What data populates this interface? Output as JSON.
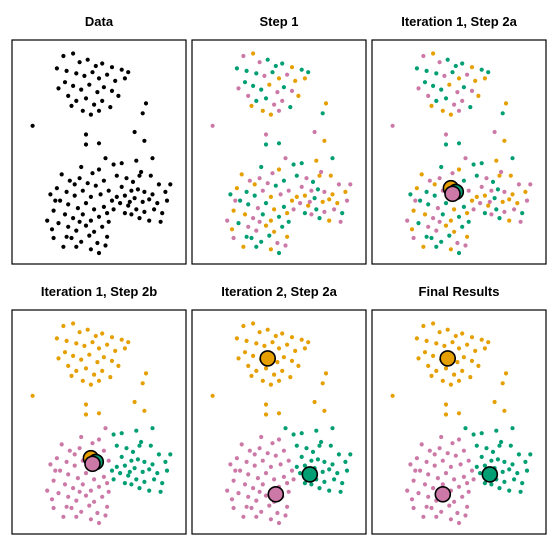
{
  "figure": {
    "colors": {
      "cluster1": "#E69F00",
      "cluster2": "#CC79A7",
      "cluster3": "#009E73",
      "unassigned": "#000000"
    },
    "panels": [
      {
        "title": "Data",
        "mode": "data",
        "show_centroids": false
      },
      {
        "title": "Step 1",
        "mode": "random",
        "show_centroids": false
      },
      {
        "title": "Iteration 1, Step 2a",
        "mode": "random",
        "show_centroids": true,
        "centroids": [
          {
            "cluster": 1,
            "x": 4.5,
            "y": 5.6
          },
          {
            "cluster": 3,
            "x": 4.8,
            "y": 5.3
          },
          {
            "cluster": 2,
            "x": 4.6,
            "y": 5.15
          }
        ]
      },
      {
        "title": "Iteration 1, Step 2b",
        "mode": "step2b",
        "show_centroids": true,
        "centroids": [
          {
            "cluster": 1,
            "x": 4.5,
            "y": 5.6
          },
          {
            "cluster": 3,
            "x": 4.8,
            "y": 5.3
          },
          {
            "cluster": 2,
            "x": 4.6,
            "y": 5.15
          }
        ]
      },
      {
        "title": "Iteration 2, Step 2a",
        "mode": "final",
        "show_centroids": true,
        "centroids": [
          {
            "cluster": 1,
            "x": 4.3,
            "y": 13.6
          },
          {
            "cluster": 3,
            "x": 6.9,
            "y": 4.3
          },
          {
            "cluster": 2,
            "x": 4.8,
            "y": 2.7
          }
        ]
      },
      {
        "title": "Final Results",
        "mode": "final",
        "show_centroids": true,
        "centroids": [
          {
            "cluster": 1,
            "x": 4.3,
            "y": 13.6
          },
          {
            "cluster": 3,
            "x": 6.9,
            "y": 4.3
          },
          {
            "cluster": 2,
            "x": 4.0,
            "y": 2.7
          }
        ]
      }
    ]
  },
  "chart_data": {
    "type": "scatter",
    "xlim": [
      0,
      10
    ],
    "ylim": [
      0,
      17
    ],
    "axes_visible": false,
    "points": [
      [
        2.8,
        16.2
      ],
      [
        3.4,
        16.4
      ],
      [
        3.8,
        15.7
      ],
      [
        4.3,
        15.9
      ],
      [
        4.8,
        15.4
      ],
      [
        5.2,
        15.6
      ],
      [
        5.8,
        15.3
      ],
      [
        6.4,
        15.1
      ],
      [
        2.4,
        15.2
      ],
      [
        3.0,
        15.0
      ],
      [
        3.6,
        14.8
      ],
      [
        4.1,
        14.6
      ],
      [
        4.6,
        14.9
      ],
      [
        5.0,
        14.4
      ],
      [
        5.5,
        14.7
      ],
      [
        6.0,
        14.2
      ],
      [
        6.6,
        14.4
      ],
      [
        2.9,
        14.1
      ],
      [
        3.4,
        13.8
      ],
      [
        3.9,
        13.5
      ],
      [
        4.4,
        13.9
      ],
      [
        4.9,
        13.3
      ],
      [
        5.3,
        13.7
      ],
      [
        5.8,
        13.4
      ],
      [
        6.2,
        13.0
      ],
      [
        3.1,
        13.0
      ],
      [
        3.6,
        12.6
      ],
      [
        4.2,
        12.8
      ],
      [
        4.7,
        12.3
      ],
      [
        5.2,
        12.6
      ],
      [
        5.7,
        12.1
      ],
      [
        3.3,
        12.2
      ],
      [
        4.0,
        11.8
      ],
      [
        4.5,
        11.5
      ],
      [
        5.0,
        11.8
      ],
      [
        2.5,
        13.6
      ],
      [
        6.8,
        14.9
      ],
      [
        0.9,
        10.6
      ],
      [
        7.7,
        11.6
      ],
      [
        7.9,
        12.4
      ],
      [
        7.2,
        10.1
      ],
      [
        4.2,
        9.1
      ],
      [
        5.0,
        9.2
      ],
      [
        7.8,
        9.4
      ],
      [
        5.4,
        8.0
      ],
      [
        5.9,
        7.5
      ],
      [
        6.4,
        7.6
      ],
      [
        7.3,
        7.8
      ],
      [
        7.6,
        6.9
      ],
      [
        5.0,
        7.1
      ],
      [
        6.1,
        6.6
      ],
      [
        6.7,
        6.4
      ],
      [
        7.1,
        6.1
      ],
      [
        8.2,
        6.6
      ],
      [
        8.7,
        5.9
      ],
      [
        6.4,
        5.7
      ],
      [
        7.0,
        5.4
      ],
      [
        7.4,
        5.5
      ],
      [
        7.8,
        5.3
      ],
      [
        8.3,
        5.1
      ],
      [
        9.1,
        5.3
      ],
      [
        6.6,
        5.0
      ],
      [
        7.2,
        4.8
      ],
      [
        7.7,
        4.5
      ],
      [
        8.1,
        4.7
      ],
      [
        8.6,
        4.4
      ],
      [
        9.2,
        4.6
      ],
      [
        6.8,
        4.2
      ],
      [
        7.3,
        3.9
      ],
      [
        7.8,
        3.7
      ],
      [
        8.4,
        3.9
      ],
      [
        8.9,
        3.6
      ],
      [
        7.0,
        3.5
      ],
      [
        7.5,
        3.2
      ],
      [
        8.1,
        3.0
      ],
      [
        8.8,
        2.9
      ],
      [
        6.9,
        4.5
      ],
      [
        5.9,
        3.9
      ],
      [
        6.3,
        4.4
      ],
      [
        6.1,
        4.9
      ],
      [
        5.6,
        5.4
      ],
      [
        6.6,
        3.6
      ],
      [
        7.5,
        6.6
      ],
      [
        9.4,
        5.9
      ],
      [
        8.3,
        8.0
      ],
      [
        4.2,
        9.9
      ],
      [
        2.7,
        6.7
      ],
      [
        3.2,
        6.2
      ],
      [
        3.8,
        6.4
      ],
      [
        4.3,
        6.0
      ],
      [
        4.8,
        5.8
      ],
      [
        5.3,
        6.2
      ],
      [
        2.4,
        5.6
      ],
      [
        3.0,
        5.3
      ],
      [
        3.5,
        5.0
      ],
      [
        4.0,
        5.4
      ],
      [
        4.5,
        4.9
      ],
      [
        5.1,
        5.1
      ],
      [
        2.6,
        4.6
      ],
      [
        3.1,
        4.3
      ],
      [
        3.7,
        4.0
      ],
      [
        4.2,
        4.4
      ],
      [
        4.7,
        3.9
      ],
      [
        5.3,
        4.1
      ],
      [
        2.2,
        3.8
      ],
      [
        2.9,
        3.5
      ],
      [
        3.4,
        3.2
      ],
      [
        4.0,
        3.5
      ],
      [
        4.5,
        3.0
      ],
      [
        5.0,
        3.3
      ],
      [
        5.5,
        3.6
      ],
      [
        2.5,
        2.8
      ],
      [
        3.1,
        2.5
      ],
      [
        3.6,
        2.2
      ],
      [
        4.2,
        2.6
      ],
      [
        4.7,
        2.1
      ],
      [
        5.2,
        2.5
      ],
      [
        3.3,
        1.6
      ],
      [
        3.9,
        1.3
      ],
      [
        4.4,
        1.8
      ],
      [
        4.9,
        1.2
      ],
      [
        3.6,
        0.9
      ],
      [
        4.5,
        0.7
      ],
      [
        5.5,
        1.7
      ],
      [
        2.1,
        2.3
      ],
      [
        1.8,
        3.0
      ],
      [
        2.3,
        4.6
      ],
      [
        5.6,
        2.9
      ],
      [
        3.0,
        1.7
      ],
      [
        3.8,
        2.9
      ],
      [
        5.4,
        1.0
      ],
      [
        3.9,
        7.3
      ],
      [
        2.0,
        5.1
      ],
      [
        5.8,
        4.6
      ],
      [
        4.6,
        6.8
      ],
      [
        2.8,
        0.9
      ],
      [
        5.0,
        0.4
      ],
      [
        2.2,
        1.6
      ],
      [
        3.5,
        5.9
      ]
    ]
  }
}
